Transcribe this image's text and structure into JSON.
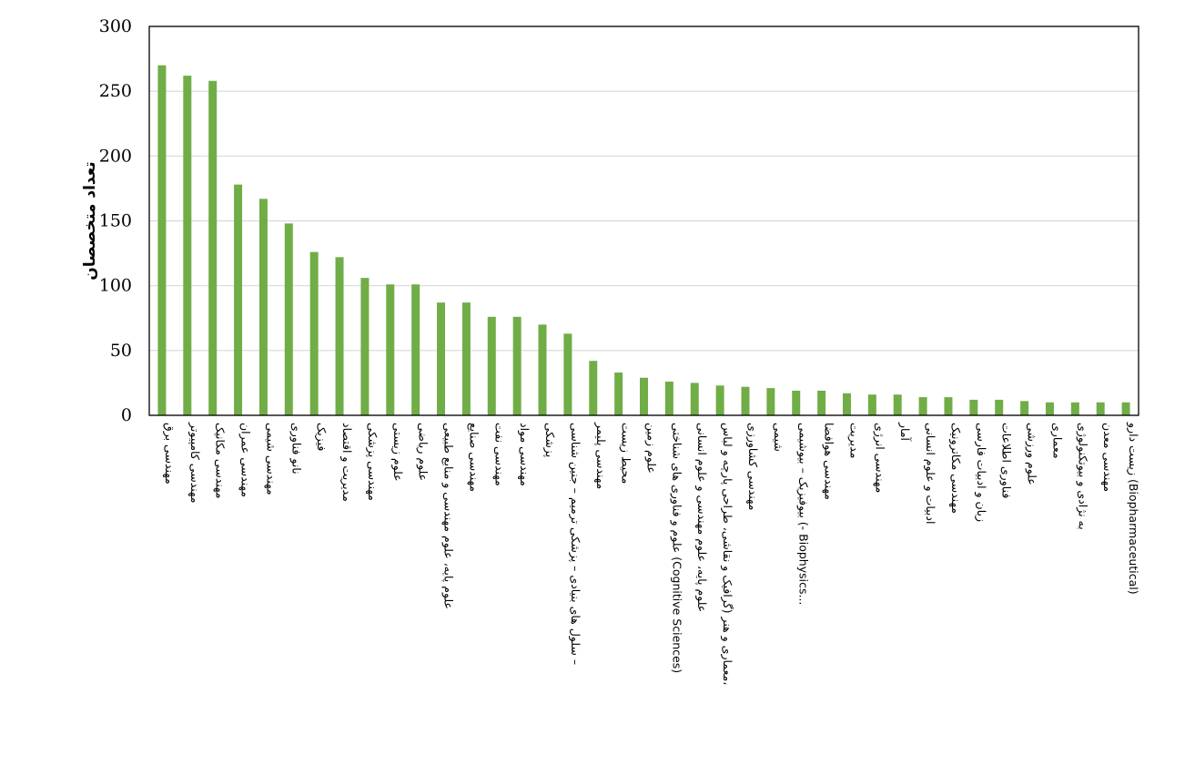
{
  "chart_data": {
    "type": "bar",
    "title": "",
    "xlabel": "",
    "ylabel": "تعداد متخصصان",
    "ylim": [
      0,
      300
    ],
    "yticks": [
      0,
      50,
      100,
      150,
      200,
      250,
      300
    ],
    "grid": true,
    "legend": "none",
    "bar_color": "#70AD47",
    "categories": [
      "مهندسی برق",
      "مهندسی کامپیوتر",
      "مهندسی مکانیک",
      "مهندسی عمران",
      "مهندسی شیمی",
      "نانو فناوری",
      "فیزیک",
      "مدیریت و اقتصاد",
      "مهندسی پزشکی",
      "علوم زیستی",
      "علوم ریاضی",
      "علوم پایه، علوم مهندسی و منابع طبیعی",
      "مهندسی صنایع",
      "مهندسی نفت",
      "مهندسی مواد",
      "پزشکی",
      "سلول های بنیادی – پزشکی ترمیم – جنین شناسی – ",
      "مهندسی پلیمر",
      "محیط زیست",
      "علوم زمین",
      "علوم و فناوری های شناختی (Cognitive Sciences)",
      "علوم پایه، علوم مهندسی و علوم انسانی",
      "معماری و هنر (گرافیک و نقاشی، طراحی پارچه و لباس، ",
      "مهندسی کشاورزی",
      "شیمی",
      "بیوفیزیک – بیوشیمی (- Biophysics...",
      "مهندسی هوافضا",
      "مدیریت",
      "مهندسی انرژی",
      "آمار",
      "ادبیات و علوم انسانی",
      "مهندسی مکاترونیک",
      "زبان و ادبیات فارسی",
      "فناوری اطلاعات",
      "علوم ورزشی",
      "معماری",
      "به نژادی و بیوتکنولوژی",
      "مهندسی معدن",
      "زیست دارو (Biopharmaceutical)"
    ],
    "values": [
      270,
      262,
      258,
      178,
      167,
      148,
      126,
      122,
      106,
      101,
      101,
      87,
      87,
      76,
      76,
      70,
      63,
      42,
      33,
      29,
      26,
      25,
      23,
      22,
      21,
      19,
      19,
      17,
      16,
      16,
      14,
      14,
      12,
      12,
      11,
      10,
      10,
      10,
      10
    ]
  }
}
